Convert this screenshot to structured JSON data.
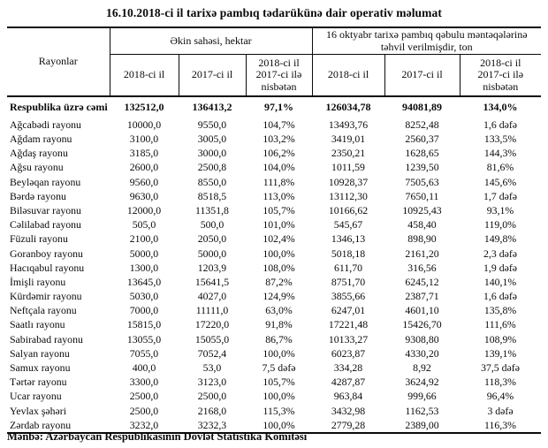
{
  "title": "16.10.2018-ci il tarixə pambıq tədarükünə dair operativ məlumat",
  "table": {
    "rayonlar_header": "Rayonlar",
    "group1": "Əkin sahəsi, hektar",
    "group2": "16 oktyabr tarixə pambıq qəbulu məntəqələrinə təhvil verilmişdir, ton",
    "sub_headers": [
      "2018-ci il",
      "2017-ci il",
      "2018-ci il\n2017-ci ilə\nnisbətən",
      "2018-ci il",
      "2017-ci il",
      "2018-ci il\n2017-ci ilə\nnisbətən"
    ],
    "total_row": [
      "Respublika üzrə cəmi",
      "132512,0",
      "136413,2",
      "97,1%",
      "126034,78",
      "94081,89",
      "134,0%"
    ],
    "rows": [
      [
        "Ağcabədi rayonu",
        "10000,0",
        "9550,0",
        "104,7%",
        "13493,76",
        "8252,48",
        "1,6 dəfə"
      ],
      [
        "Ağdam rayonu",
        "3100,0",
        "3005,0",
        "103,2%",
        "3419,01",
        "2560,37",
        "133,5%"
      ],
      [
        "Ağdaş rayonu",
        "3185,0",
        "3000,0",
        "106,2%",
        "2350,21",
        "1628,65",
        "144,3%"
      ],
      [
        "Ağsu rayonu",
        "2600,0",
        "2500,8",
        "104,0%",
        "1011,59",
        "1239,50",
        "81,6%"
      ],
      [
        "Beyləqan rayonu",
        "9560,0",
        "8550,0",
        "111,8%",
        "10928,37",
        "7505,63",
        "145,6%"
      ],
      [
        "Bərdə rayonu",
        "9630,0",
        "8518,5",
        "113,0%",
        "13112,30",
        "7650,11",
        "1,7 dəfə"
      ],
      [
        "Biləsuvar rayonu",
        "12000,0",
        "11351,8",
        "105,7%",
        "10166,62",
        "10925,43",
        "93,1%"
      ],
      [
        "Cəlilabad rayonu",
        "505,0",
        "500,0",
        "101,0%",
        "545,67",
        "458,40",
        "119,0%"
      ],
      [
        "Füzuli rayonu",
        "2100,0",
        "2050,0",
        "102,4%",
        "1346,13",
        "898,90",
        "149,8%"
      ],
      [
        "Goranboy rayonu",
        "5000,0",
        "5000,0",
        "100,0%",
        "5018,18",
        "2161,20",
        "2,3 dəfə"
      ],
      [
        "Hacıqabul rayonu",
        "1300,0",
        "1203,9",
        "108,0%",
        "611,70",
        "316,56",
        "1,9 dəfə"
      ],
      [
        "İmişli rayonu",
        "13645,0",
        "15641,5",
        "87,2%",
        "8751,70",
        "6245,12",
        "140,1%"
      ],
      [
        "Kürdəmir rayonu",
        "5030,0",
        "4027,0",
        "124,9%",
        "3855,66",
        "2387,71",
        "1,6 dəfə"
      ],
      [
        "Neftçala rayonu",
        "7000,0",
        "11111,0",
        "63,0%",
        "6247,01",
        "4601,10",
        "135,8%"
      ],
      [
        "Saatlı rayonu",
        "15815,0",
        "17220,0",
        "91,8%",
        "17221,48",
        "15426,70",
        "111,6%"
      ],
      [
        "Sabirabad rayonu",
        "13055,0",
        "15055,0",
        "86,7%",
        "10133,27",
        "9308,80",
        "108,9%"
      ],
      [
        "Salyan rayonu",
        "7055,0",
        "7052,4",
        "100,0%",
        "6023,87",
        "4330,20",
        "139,1%"
      ],
      [
        "Samux rayonu",
        "400,0",
        "53,0",
        "7,5 dəfə",
        "334,28",
        "8,92",
        "37,5 dəfə"
      ],
      [
        "Tərtər rayonu",
        "3300,0",
        "3123,0",
        "105,7%",
        "4287,87",
        "3624,92",
        "118,3%"
      ],
      [
        "Ucar rayonu",
        "2500,0",
        "2500,0",
        "100,0%",
        "963,84",
        "999,66",
        "96,4%"
      ],
      [
        "Yevlax şəhəri",
        "2500,0",
        "2168,0",
        "115,3%",
        "3432,98",
        "1162,53",
        "3 dəfə"
      ],
      [
        "Zərdab rayonu",
        "3232,0",
        "3232,3",
        "100,0%",
        "2779,28",
        "2389,00",
        "116,3%"
      ]
    ]
  },
  "footer": "Mənbə: Azərbaycan Respublikasının Dövlət Statistika Komitəsi"
}
